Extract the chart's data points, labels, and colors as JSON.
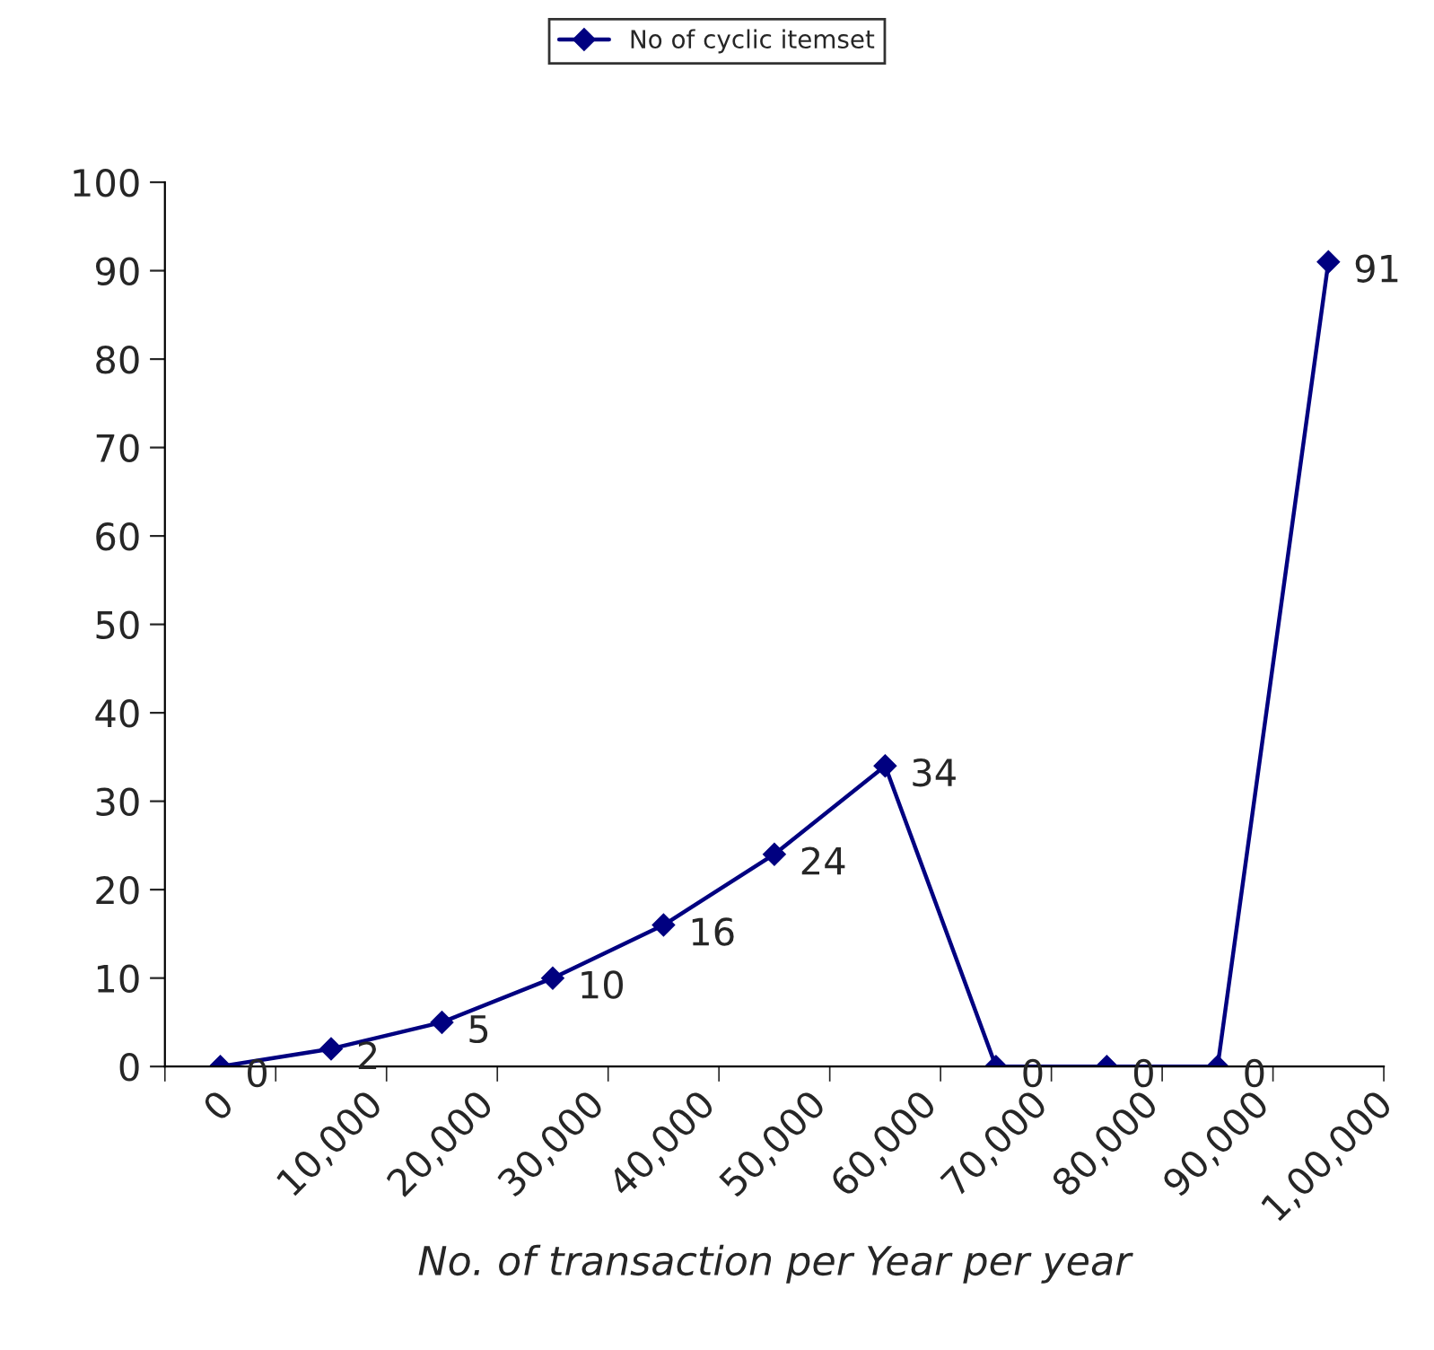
{
  "chart_data": {
    "type": "line",
    "xlabel": "No. of transaction per Year per year",
    "categories": [
      "0",
      "10,000",
      "20,000",
      "30,000",
      "40,000",
      "50,000",
      "60,000",
      "70,000",
      "80,000",
      "90,000",
      "1,00,000"
    ],
    "series": [
      {
        "name": "No of cyclic itemset",
        "color": "#000080",
        "values": [
          0,
          2,
          5,
          10,
          16,
          24,
          34,
          0,
          0,
          0,
          91
        ]
      }
    ],
    "ylim": [
      0,
      100
    ],
    "yticks": [
      0,
      10,
      20,
      30,
      40,
      50,
      60,
      70,
      80,
      90,
      100
    ],
    "data_labels": true,
    "legend": "top",
    "marker": "diamond",
    "line_style": "solid",
    "grid": false
  }
}
